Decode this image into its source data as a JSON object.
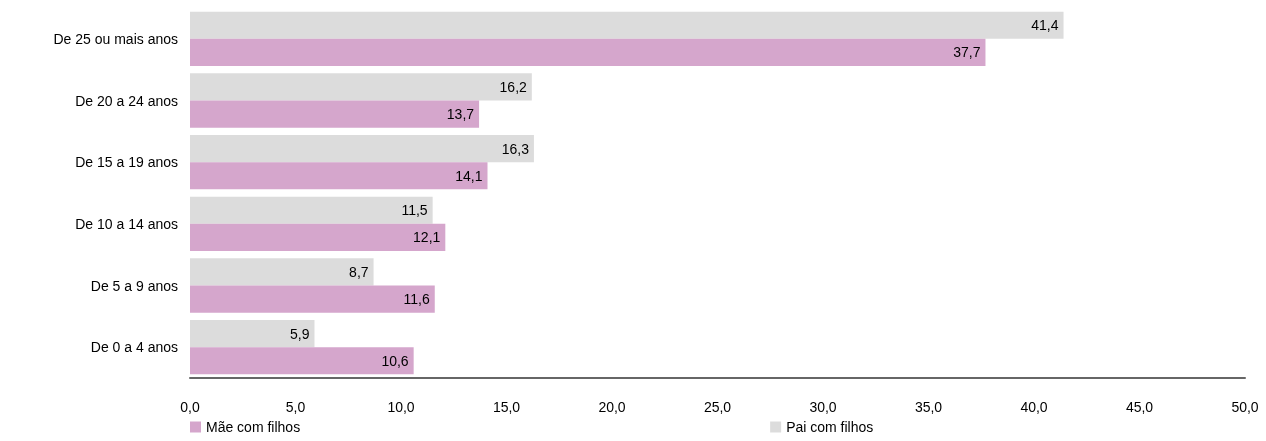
{
  "chart_data": {
    "type": "bar",
    "orientation": "horizontal",
    "categories": [
      "De 25 ou mais anos",
      "De 20 a 24 anos",
      "De 15 a 19 anos",
      "De 10 a 14 anos",
      "De 5 a 9 anos",
      "De 0 a 4 anos"
    ],
    "series": [
      {
        "name": "Mãe com filhos",
        "color": "#d5a6cc",
        "values": [
          37.7,
          13.7,
          14.1,
          12.1,
          11.6,
          10.6
        ],
        "value_labels": [
          "37,7",
          "13,7",
          "14,1",
          "12,1",
          "11,6",
          "10,6"
        ]
      },
      {
        "name": "Pai com filhos",
        "color": "#dcdcdc",
        "values": [
          41.4,
          16.2,
          16.3,
          11.5,
          8.7,
          5.9
        ],
        "value_labels": [
          "41,4",
          "16,2",
          "16,3",
          "11,5",
          "8,7",
          "5,9"
        ]
      }
    ],
    "xlim": [
      0,
      50
    ],
    "xticks": [
      {
        "value": 0,
        "label": "0,0"
      },
      {
        "value": 5,
        "label": "5,0"
      },
      {
        "value": 10,
        "label": "10,0"
      },
      {
        "value": 15,
        "label": "15,0"
      },
      {
        "value": 20,
        "label": "20,0"
      },
      {
        "value": 25,
        "label": "25,0"
      },
      {
        "value": 30,
        "label": "30,0"
      },
      {
        "value": 35,
        "label": "35,0"
      },
      {
        "value": 40,
        "label": "40,0"
      },
      {
        "value": 45,
        "label": "45,0"
      },
      {
        "value": 50,
        "label": "50,0"
      }
    ],
    "grid": false,
    "legend": "bottom"
  }
}
